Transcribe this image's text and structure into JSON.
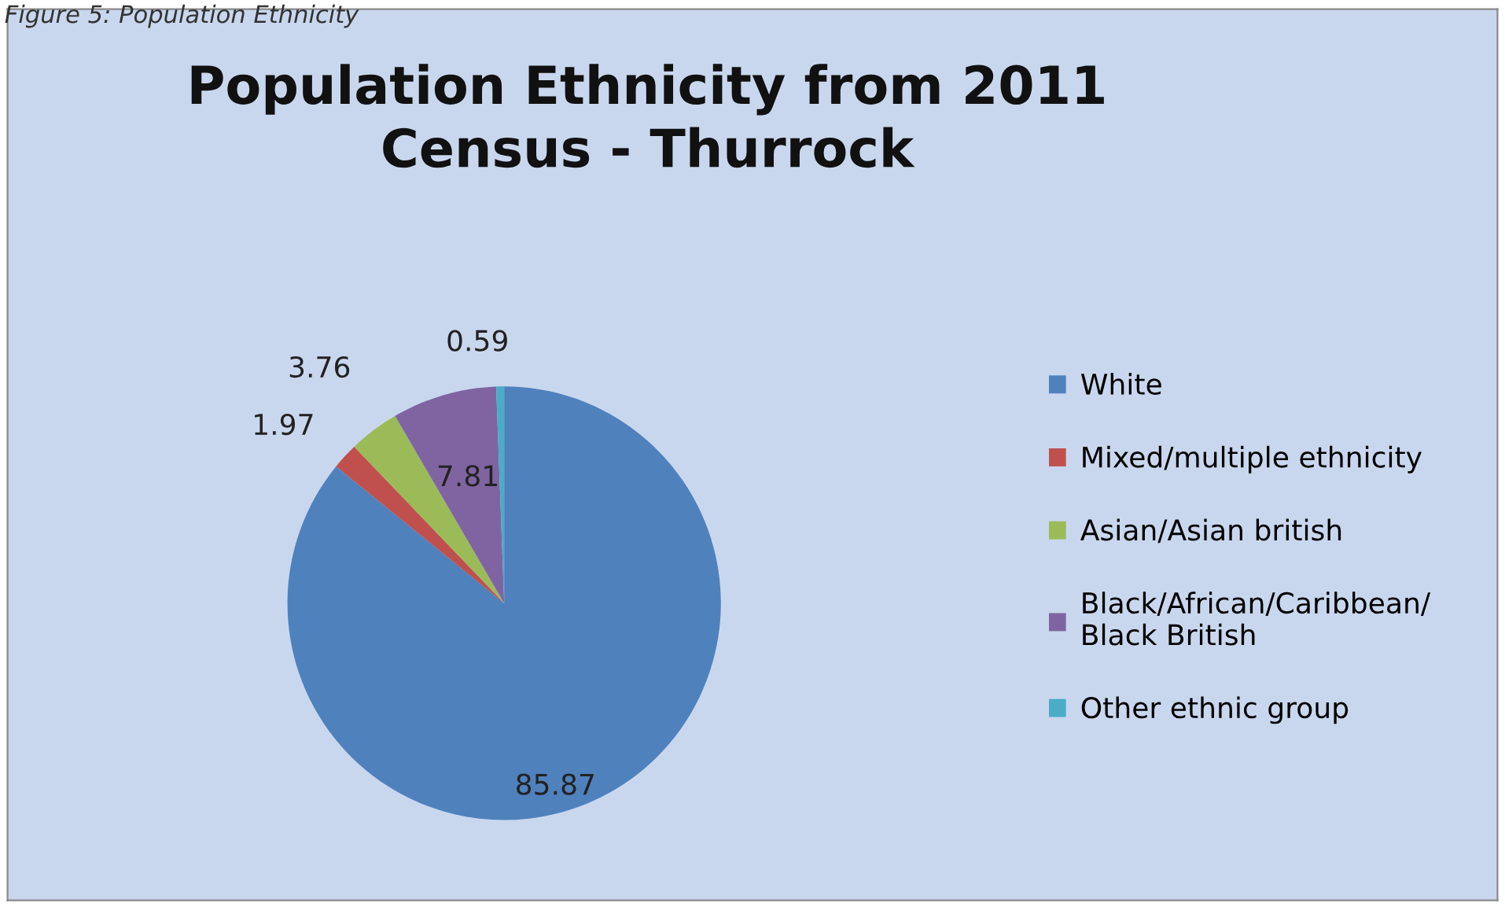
{
  "chart_data": {
    "type": "pie",
    "title": "Population Ethnicity from 2011\nCensus - Thurrock",
    "categories": [
      "White",
      "Mixed/multiple ethnicity",
      "Asian/Asian british",
      "Black/African/Caribbean/\nBlack British",
      "Other ethnic group"
    ],
    "values": [
      85.87,
      1.97,
      3.76,
      7.81,
      0.59
    ],
    "colors": [
      "#4f81bd",
      "#c0504d",
      "#9bbb59",
      "#8064a2",
      "#4bacc6"
    ],
    "data_labels": true,
    "legend": "right",
    "annotations": [
      "Figure 5: Population Ethnicity"
    ]
  }
}
